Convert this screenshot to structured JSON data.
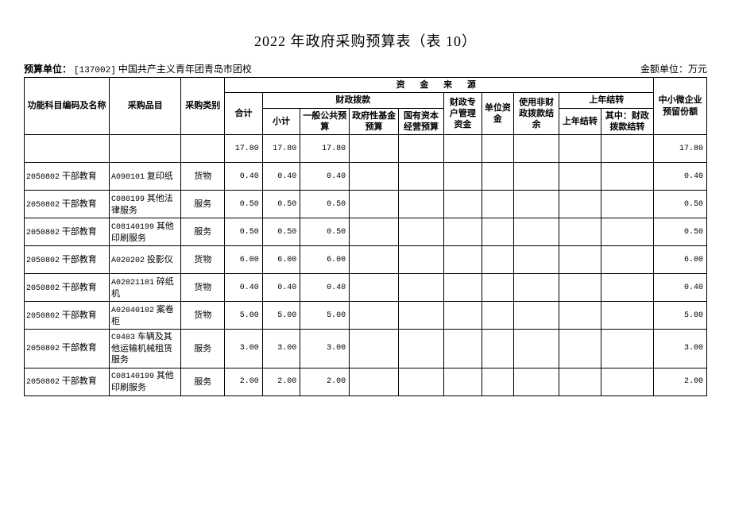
{
  "title": "2022 年政府采购预算表（表 10）",
  "budget_unit_label": "预算单位：",
  "budget_unit_code": "[137002]",
  "budget_unit_name": "中国共产主义青年团青岛市团校",
  "amount_unit": "金额单位：万元",
  "headers": {
    "col_func": "功能科目编码及名称",
    "col_item": "采购品目",
    "col_cat": "采购类别",
    "fund_source": "资 金 来 源",
    "total": "合计",
    "fiscal_alloc": "财政拨款",
    "subtotal": "小计",
    "general_public": "一般公共预算",
    "gov_fund": "政府性基金预算",
    "state_capital": "国有资本经营预算",
    "fiscal_special": "财政专户管理资金",
    "unit_fund": "单位资金",
    "nonfiscal_balance": "使用非财政拨款结余",
    "carryover": "上年结转",
    "carryover_sub": "上年结转",
    "carryover_fiscal": "其中：财政拨款结转",
    "sme_reserve": "中小微企业预留份额"
  },
  "totals": {
    "total": "17.80",
    "subtotal": "17.80",
    "general_public": "17.80",
    "sme": "17.80"
  },
  "rows": [
    {
      "func": "2050802 干部教育",
      "item_code": "A090101",
      "item_name": "复印纸",
      "cat": "货物",
      "total": "0.40",
      "subtotal": "0.40",
      "gp": "0.40",
      "sme": "0.40"
    },
    {
      "func": "2050802 干部教育",
      "item_code": "C080199",
      "item_name": "其他法律服务",
      "cat": "服务",
      "total": "0.50",
      "subtotal": "0.50",
      "gp": "0.50",
      "sme": "0.50"
    },
    {
      "func": "2050802 干部教育",
      "item_code": "C08140199",
      "item_name": "其他印刷服务",
      "cat": "服务",
      "total": "0.50",
      "subtotal": "0.50",
      "gp": "0.50",
      "sme": "0.50"
    },
    {
      "func": "2050802 干部教育",
      "item_code": "A020202",
      "item_name": "投影仪",
      "cat": "货物",
      "total": "6.00",
      "subtotal": "6.00",
      "gp": "6.00",
      "sme": "6.00"
    },
    {
      "func": "2050802 干部教育",
      "item_code": "A02021101",
      "item_name": "碎纸机",
      "cat": "货物",
      "total": "0.40",
      "subtotal": "0.40",
      "gp": "0.40",
      "sme": "0.40"
    },
    {
      "func": "2050802 干部教育",
      "item_code": "A02040102",
      "item_name": "案卷柜",
      "cat": "货物",
      "total": "5.00",
      "subtotal": "5.00",
      "gp": "5.00",
      "sme": "5.00"
    },
    {
      "func": "2050802 干部教育",
      "item_code": "C0403",
      "item_name": "车辆及其他运输机械租赁服务",
      "cat": "服务",
      "total": "3.00",
      "subtotal": "3.00",
      "gp": "3.00",
      "sme": "3.00"
    },
    {
      "func": "2050802 干部教育",
      "item_code": "C08140199",
      "item_name": "其他印刷服务",
      "cat": "服务",
      "total": "2.00",
      "subtotal": "2.00",
      "gp": "2.00",
      "sme": "2.00"
    }
  ]
}
